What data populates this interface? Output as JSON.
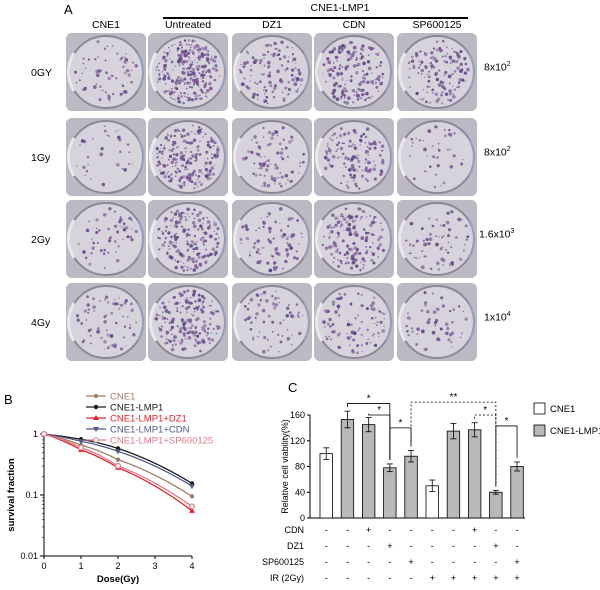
{
  "panel_labels": {
    "a": "A",
    "b": "B",
    "c": "C"
  },
  "panel_a": {
    "group_label": "CNE1-LMP1",
    "columns": [
      "CNE1",
      "Untreated",
      "DZ1",
      "CDN",
      "SP600125"
    ],
    "rows": [
      {
        "label": "0GY",
        "seed_base": "8x10",
        "seed_exp": "2",
        "density": [
          0.25,
          1.0,
          0.45,
          0.65,
          0.5
        ]
      },
      {
        "label": "1Gy",
        "seed_base": "8x10",
        "seed_exp": "2",
        "density": [
          0.12,
          0.8,
          0.35,
          0.5,
          0.15
        ]
      },
      {
        "label": "2Gy",
        "seed_base": "1.6x10",
        "seed_exp": "3",
        "density": [
          0.2,
          0.7,
          0.3,
          0.6,
          0.25
        ]
      },
      {
        "label": "4Gy",
        "seed_base": "1x10",
        "seed_exp": "4",
        "density": [
          0.25,
          0.7,
          0.25,
          0.35,
          0.2
        ]
      }
    ]
  },
  "panel_b": {
    "chart_data": {
      "type": "line",
      "xlabel": "Dose(Gy)",
      "ylabel": "survival fraction",
      "x": [
        0,
        1,
        2,
        4
      ],
      "xticks": [
        "0",
        "1",
        "2",
        "3",
        "4"
      ],
      "yticks": [
        "1",
        "0.1",
        "0.01"
      ],
      "ylim": [
        0.01,
        1
      ],
      "yscale": "log",
      "xlim": [
        0,
        4
      ],
      "series": [
        {
          "name": "CNE1",
          "color": "#a08060",
          "values": [
            1,
            0.66,
            0.38,
            0.095
          ]
        },
        {
          "name": "CNE1-LMP1",
          "color": "#1a1a1a",
          "values": [
            1,
            0.82,
            0.58,
            0.155
          ]
        },
        {
          "name": "CNE1-LMP1+DZ1",
          "color": "#e0222a",
          "values": [
            1,
            0.55,
            0.28,
            0.055
          ]
        },
        {
          "name": "CNE1-LMP1+CDN",
          "color": "#505a8a",
          "values": [
            1,
            0.76,
            0.52,
            0.14
          ]
        },
        {
          "name": "CNE1-LMP1+SP600125",
          "color": "#e07a8a",
          "values": [
            1,
            0.6,
            0.3,
            0.065
          ]
        }
      ]
    }
  },
  "panel_c": {
    "chart_data": {
      "type": "bar",
      "ylabel": "Relative cell viability(%)",
      "ylim": [
        0,
        160
      ],
      "yticks": [
        "0",
        "40",
        "80",
        "120",
        "160"
      ],
      "legend": [
        {
          "name": "CNE1",
          "color": "#ffffff"
        },
        {
          "name": "CNE1-LMP1",
          "color": "#b8b8b8"
        }
      ],
      "bars": [
        {
          "value": 100,
          "err": 9,
          "group": "CNE1"
        },
        {
          "value": 153,
          "err": 13,
          "group": "CNE1-LMP1"
        },
        {
          "value": 145,
          "err": 11,
          "group": "CNE1-LMP1"
        },
        {
          "value": 78,
          "err": 6,
          "group": "CNE1-LMP1"
        },
        {
          "value": 96,
          "err": 9,
          "group": "CNE1-LMP1"
        },
        {
          "value": 50,
          "err": 9,
          "group": "CNE1"
        },
        {
          "value": 135,
          "err": 12,
          "group": "CNE1-LMP1"
        },
        {
          "value": 137,
          "err": 11,
          "group": "CNE1-LMP1"
        },
        {
          "value": 40,
          "err": 3,
          "group": "CNE1-LMP1"
        },
        {
          "value": 80,
          "err": 7,
          "group": "CNE1-LMP1"
        }
      ],
      "treatment_rows": [
        {
          "label": "CDN",
          "marks": [
            "-",
            "-",
            "+",
            "-",
            "-",
            "-",
            "-",
            "+",
            "-",
            "-"
          ]
        },
        {
          "label": "DZ1",
          "marks": [
            "-",
            "-",
            "-",
            "+",
            "-",
            "-",
            "-",
            "-",
            "+",
            "-"
          ]
        },
        {
          "label": "SP600125",
          "marks": [
            "-",
            "-",
            "-",
            "-",
            "+",
            "-",
            "-",
            "-",
            "-",
            "+"
          ]
        },
        {
          "label": "IR (2Gy)",
          "marks": [
            "-",
            "-",
            "-",
            "-",
            "-",
            "+",
            "+",
            "+",
            "+",
            "+"
          ]
        }
      ],
      "annotations": [
        "*",
        "*",
        "*",
        "**",
        "*",
        "*"
      ]
    }
  }
}
